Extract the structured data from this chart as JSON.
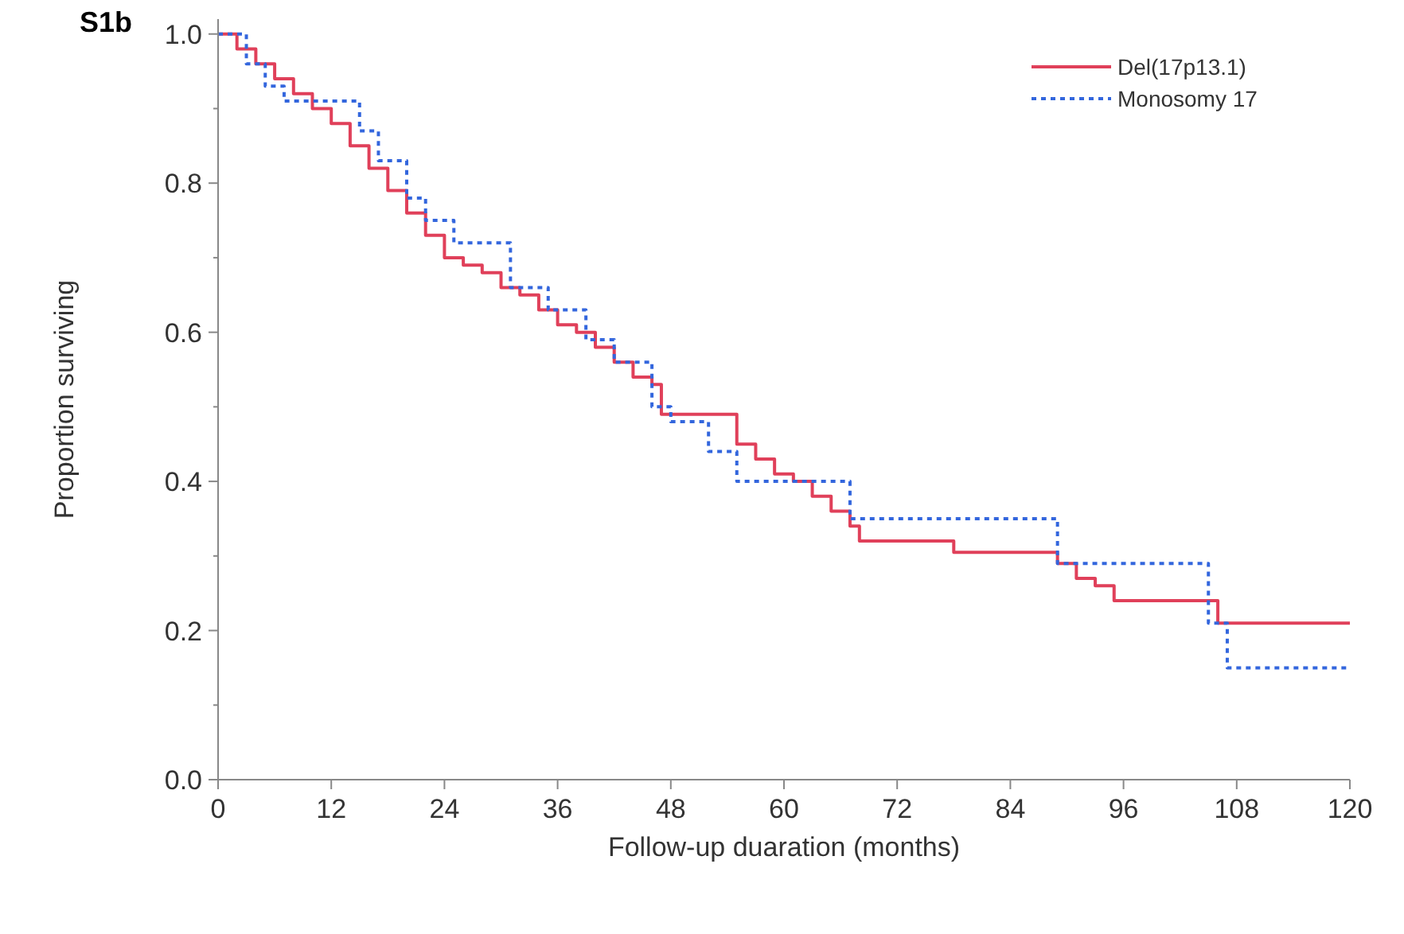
{
  "chart_data": {
    "type": "step",
    "title": "S1b",
    "xlabel": "Follow-up duaration (months)",
    "ylabel": "Proportion surviving",
    "xlim": [
      0,
      120
    ],
    "xticks": [
      0,
      12,
      24,
      36,
      48,
      60,
      72,
      84,
      96,
      108,
      120
    ],
    "ylim": [
      0,
      1.02
    ],
    "yticks": [
      {
        "value": 0,
        "label": "0.0"
      },
      {
        "value": 0.1,
        "label": null
      },
      0.2,
      {
        "value": 0.3,
        "label": null
      },
      0.4,
      {
        "value": 0.5,
        "label": null
      },
      0.6,
      {
        "value": 0.7,
        "label": null
      },
      0.8,
      {
        "value": 0.9,
        "label": null
      },
      {
        "value": 1,
        "label": "1.0"
      }
    ],
    "grid": false,
    "legend": "top right",
    "series": [
      {
        "name": "Del(17p13.1)",
        "color": "#e0405a",
        "line_style": "solid",
        "x": [
          0,
          2,
          4,
          6,
          8,
          10,
          12,
          14,
          16,
          18,
          20,
          22,
          24,
          26,
          28,
          30,
          32,
          34,
          36,
          38,
          40,
          42,
          44,
          46,
          47,
          54,
          55,
          57,
          59,
          61,
          63,
          65,
          67,
          68,
          78,
          89,
          91,
          93,
          95,
          105,
          106,
          120
        ],
        "values": [
          1,
          0.98,
          0.96,
          0.94,
          0.92,
          0.9,
          0.88,
          0.85,
          0.82,
          0.79,
          0.76,
          0.73,
          0.7,
          0.69,
          0.68,
          0.66,
          0.65,
          0.63,
          0.61,
          0.6,
          0.58,
          0.56,
          0.54,
          0.53,
          0.49,
          0.49,
          0.45,
          0.43,
          0.41,
          0.4,
          0.38,
          0.36,
          0.34,
          0.32,
          0.305,
          0.29,
          0.27,
          0.26,
          0.24,
          0.24,
          0.21,
          0.21
        ]
      },
      {
        "name": "Monosomy 17",
        "color": "#3366dd",
        "line_style": "dotted",
        "x": [
          0,
          3,
          5,
          7,
          15,
          17,
          20,
          22,
          25,
          31,
          35,
          39,
          42,
          46,
          48,
          52,
          55,
          67,
          89,
          105,
          107,
          120
        ],
        "values": [
          1,
          0.96,
          0.93,
          0.91,
          0.87,
          0.83,
          0.78,
          0.75,
          0.72,
          0.66,
          0.63,
          0.59,
          0.56,
          0.5,
          0.48,
          0.44,
          0.4,
          0.35,
          0.29,
          0.21,
          0.15,
          0.15
        ]
      }
    ]
  }
}
